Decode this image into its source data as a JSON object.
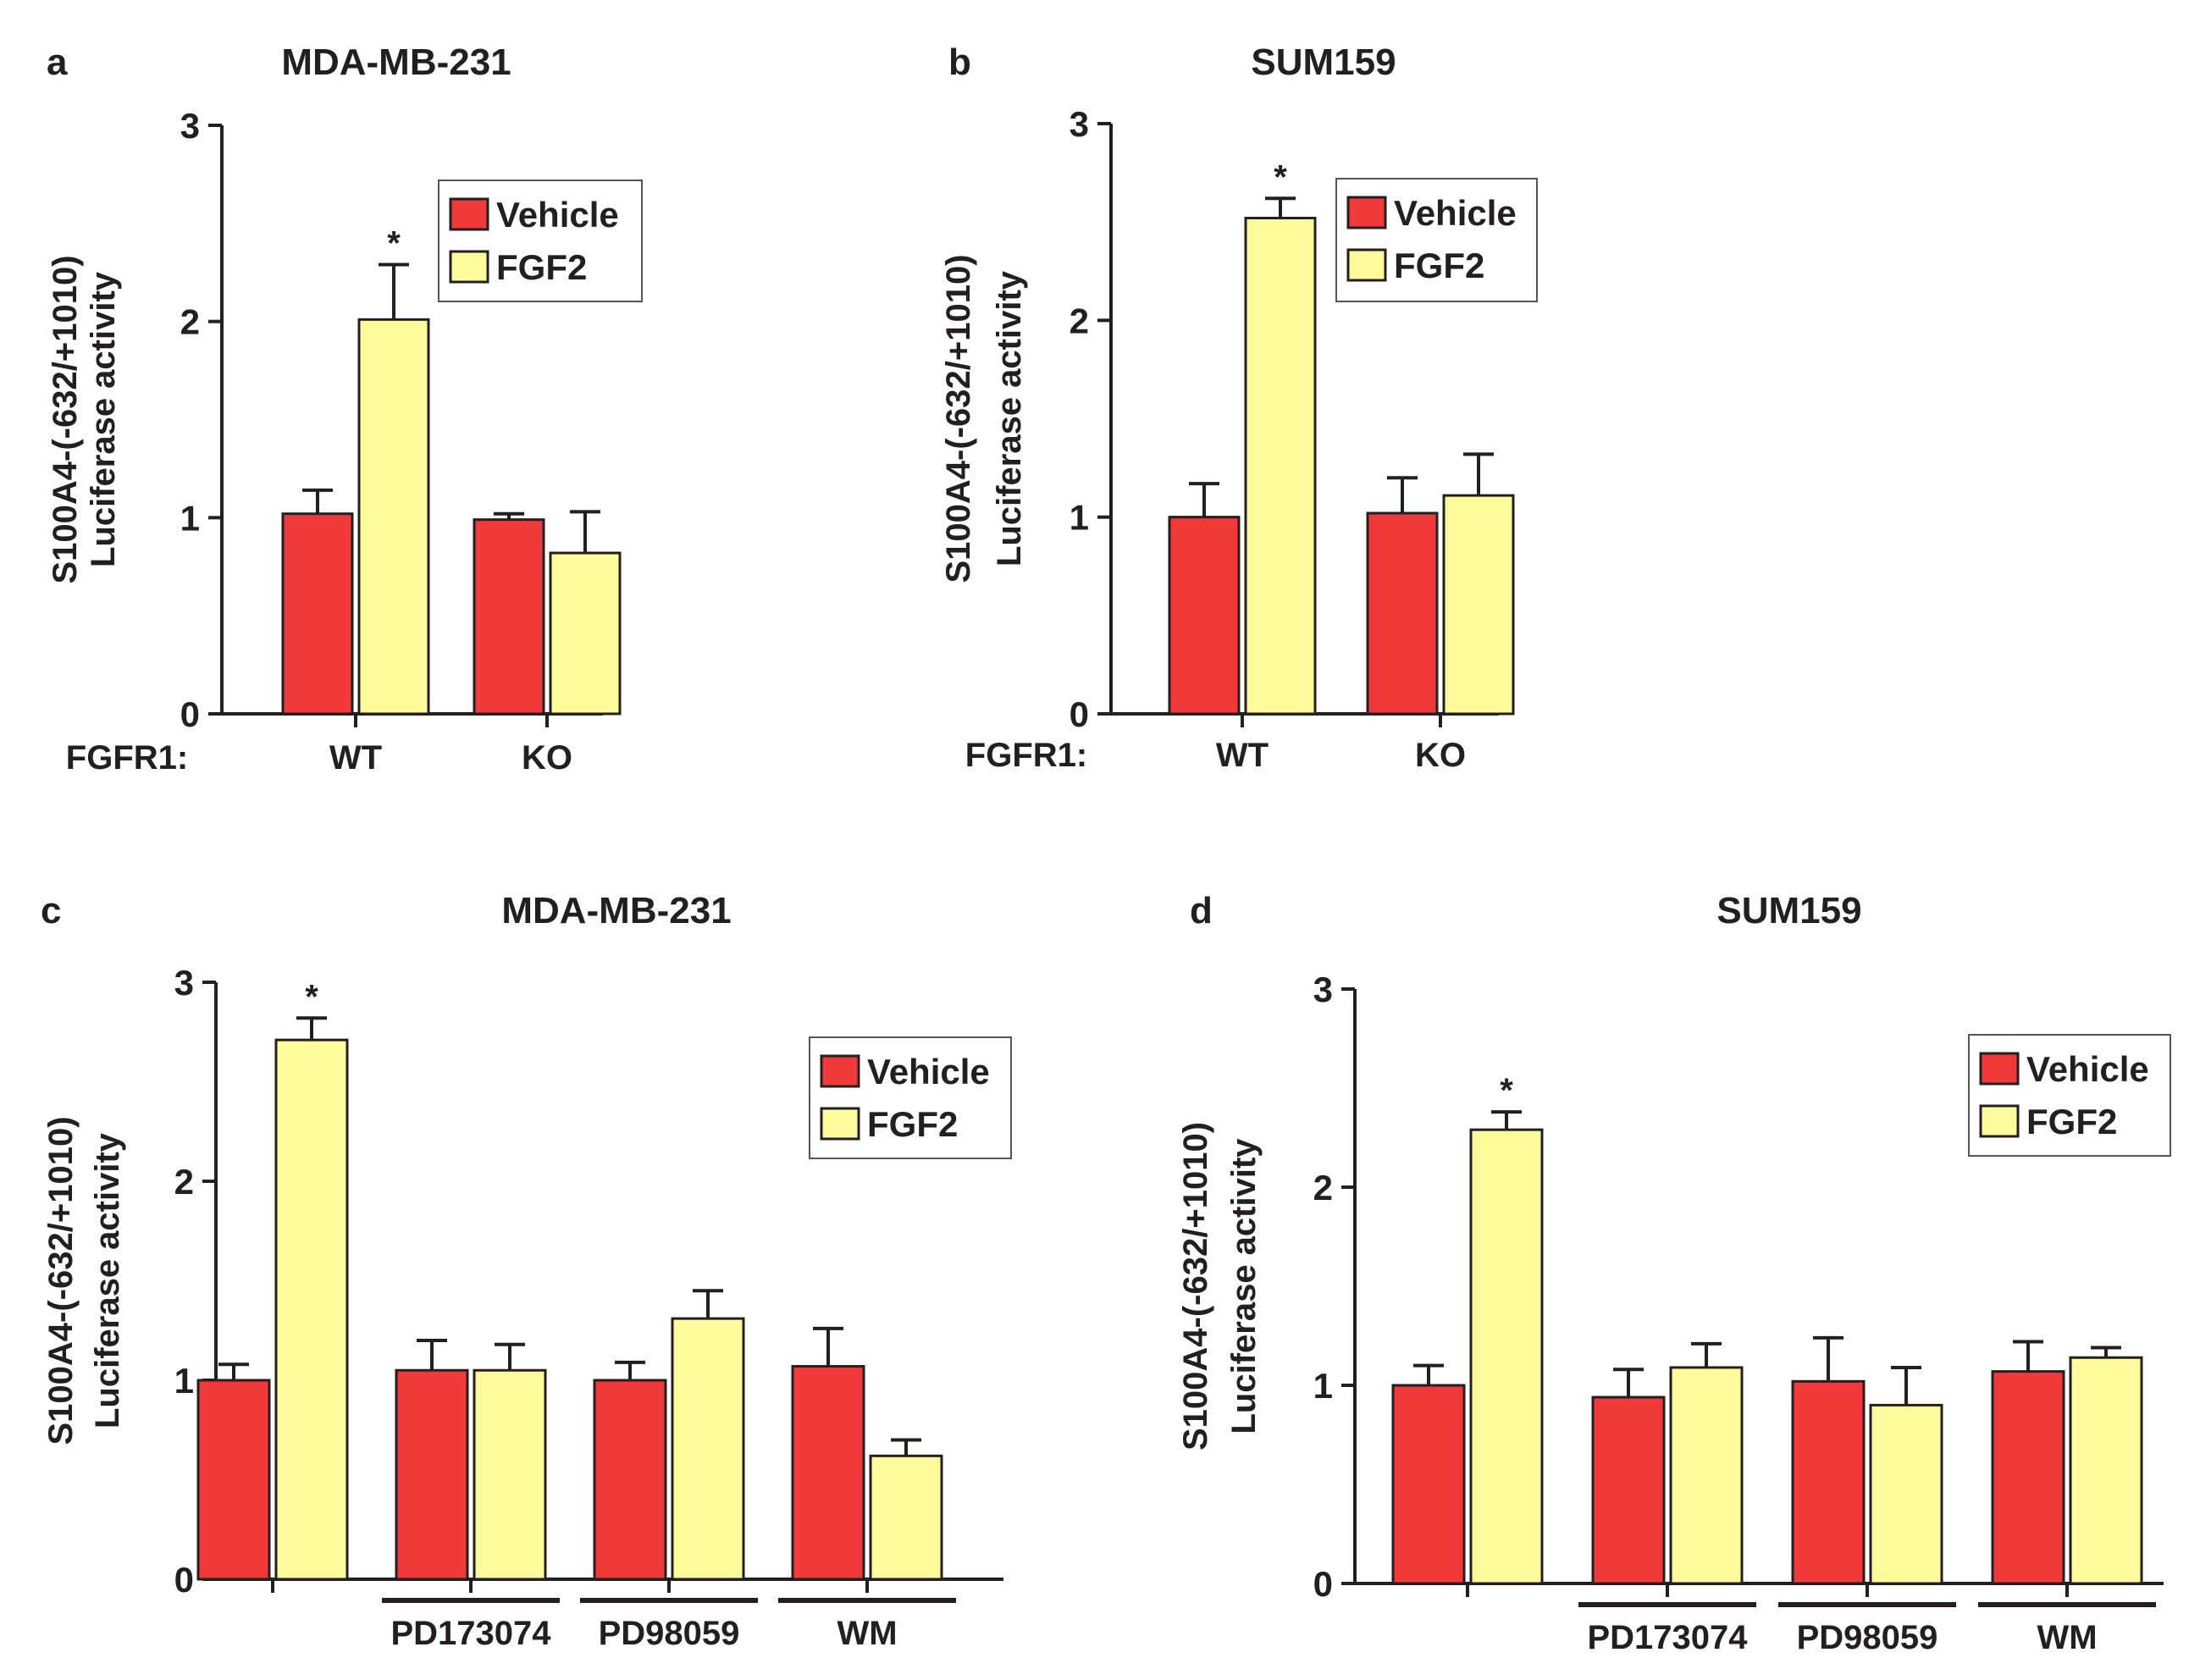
{
  "colors": {
    "vehicle": "#f2393a",
    "fgf2": "#fdfb9b",
    "axis": "#231f20"
  },
  "chart_data": [
    {
      "panel": "a",
      "type": "bar",
      "title": "MDA-MB-231",
      "ylabel": [
        "S100A4-(-632/+1010)",
        "Luciferase activity"
      ],
      "ylim": [
        0,
        3
      ],
      "yticks": [
        0,
        1,
        2,
        3
      ],
      "xprefix": "FGFR1:",
      "categories": [
        "WT",
        "KO"
      ],
      "groups": [],
      "legend": {
        "position": "top-right",
        "entries": [
          "Vehicle",
          "FGF2"
        ]
      },
      "series": [
        {
          "name": "Vehicle",
          "values": [
            1.02,
            0.99
          ],
          "errors": [
            0.12,
            0.03
          ]
        },
        {
          "name": "FGF2",
          "values": [
            2.01,
            0.82
          ],
          "errors": [
            0.28,
            0.21
          ]
        }
      ],
      "annotations": [
        {
          "text": "*",
          "series": 1,
          "category": 0
        }
      ]
    },
    {
      "panel": "b",
      "type": "bar",
      "title": "SUM159",
      "ylabel": [
        "S100A4-(-632/+1010)",
        "Luciferase activity"
      ],
      "ylim": [
        0,
        3
      ],
      "yticks": [
        0,
        1,
        2,
        3
      ],
      "xprefix": "FGFR1:",
      "categories": [
        "WT",
        "KO"
      ],
      "groups": [],
      "legend": {
        "position": "top-right",
        "entries": [
          "Vehicle",
          "FGF2"
        ]
      },
      "series": [
        {
          "name": "Vehicle",
          "values": [
            1.0,
            1.02
          ],
          "errors": [
            0.17,
            0.18
          ]
        },
        {
          "name": "FGF2",
          "values": [
            2.52,
            1.11
          ],
          "errors": [
            0.1,
            0.21
          ]
        }
      ],
      "annotations": [
        {
          "text": "*",
          "series": 1,
          "category": 0
        }
      ]
    },
    {
      "panel": "c",
      "type": "bar",
      "title": "MDA-MB-231",
      "ylabel": [
        "S100A4-(-632/+1010)",
        "Luciferase activity"
      ],
      "ylim": [
        0,
        3
      ],
      "yticks": [
        0,
        1,
        2,
        3
      ],
      "xprefix": "",
      "categories": [
        "",
        "",
        "",
        ""
      ],
      "groups": [
        {
          "label": "PD173074",
          "category": 1
        },
        {
          "label": "PD98059",
          "category": 2
        },
        {
          "label": "WM",
          "category": 3
        }
      ],
      "legend": {
        "position": "top-right",
        "entries": [
          "Vehicle",
          "FGF2"
        ]
      },
      "series": [
        {
          "name": "Vehicle",
          "values": [
            1.0,
            1.05,
            1.0,
            1.07
          ],
          "errors": [
            0.08,
            0.15,
            0.09,
            0.19
          ]
        },
        {
          "name": "FGF2",
          "values": [
            2.71,
            1.05,
            1.31,
            0.62
          ],
          "errors": [
            0.11,
            0.13,
            0.14,
            0.08
          ]
        }
      ],
      "annotations": [
        {
          "text": "*",
          "series": 1,
          "category": 0
        }
      ]
    },
    {
      "panel": "d",
      "type": "bar",
      "title": "SUM159",
      "ylabel": [
        "S100A4-(-632/+1010)",
        "Luciferase activity"
      ],
      "ylim": [
        0,
        3
      ],
      "yticks": [
        0,
        1,
        2,
        3
      ],
      "xprefix": "",
      "categories": [
        "",
        "",
        "",
        ""
      ],
      "groups": [
        {
          "label": "PD173074",
          "category": 1
        },
        {
          "label": "PD98059",
          "category": 2
        },
        {
          "label": "WM",
          "category": 3
        }
      ],
      "legend": {
        "position": "top-right",
        "entries": [
          "Vehicle",
          "FGF2"
        ]
      },
      "series": [
        {
          "name": "Vehicle",
          "values": [
            1.0,
            0.94,
            1.02,
            1.07
          ],
          "errors": [
            0.1,
            0.14,
            0.22,
            0.15
          ]
        },
        {
          "name": "FGF2",
          "values": [
            2.29,
            1.09,
            0.9,
            1.14
          ],
          "errors": [
            0.09,
            0.12,
            0.19,
            0.05
          ]
        }
      ],
      "annotations": [
        {
          "text": "*",
          "series": 1,
          "category": 0
        }
      ]
    }
  ]
}
